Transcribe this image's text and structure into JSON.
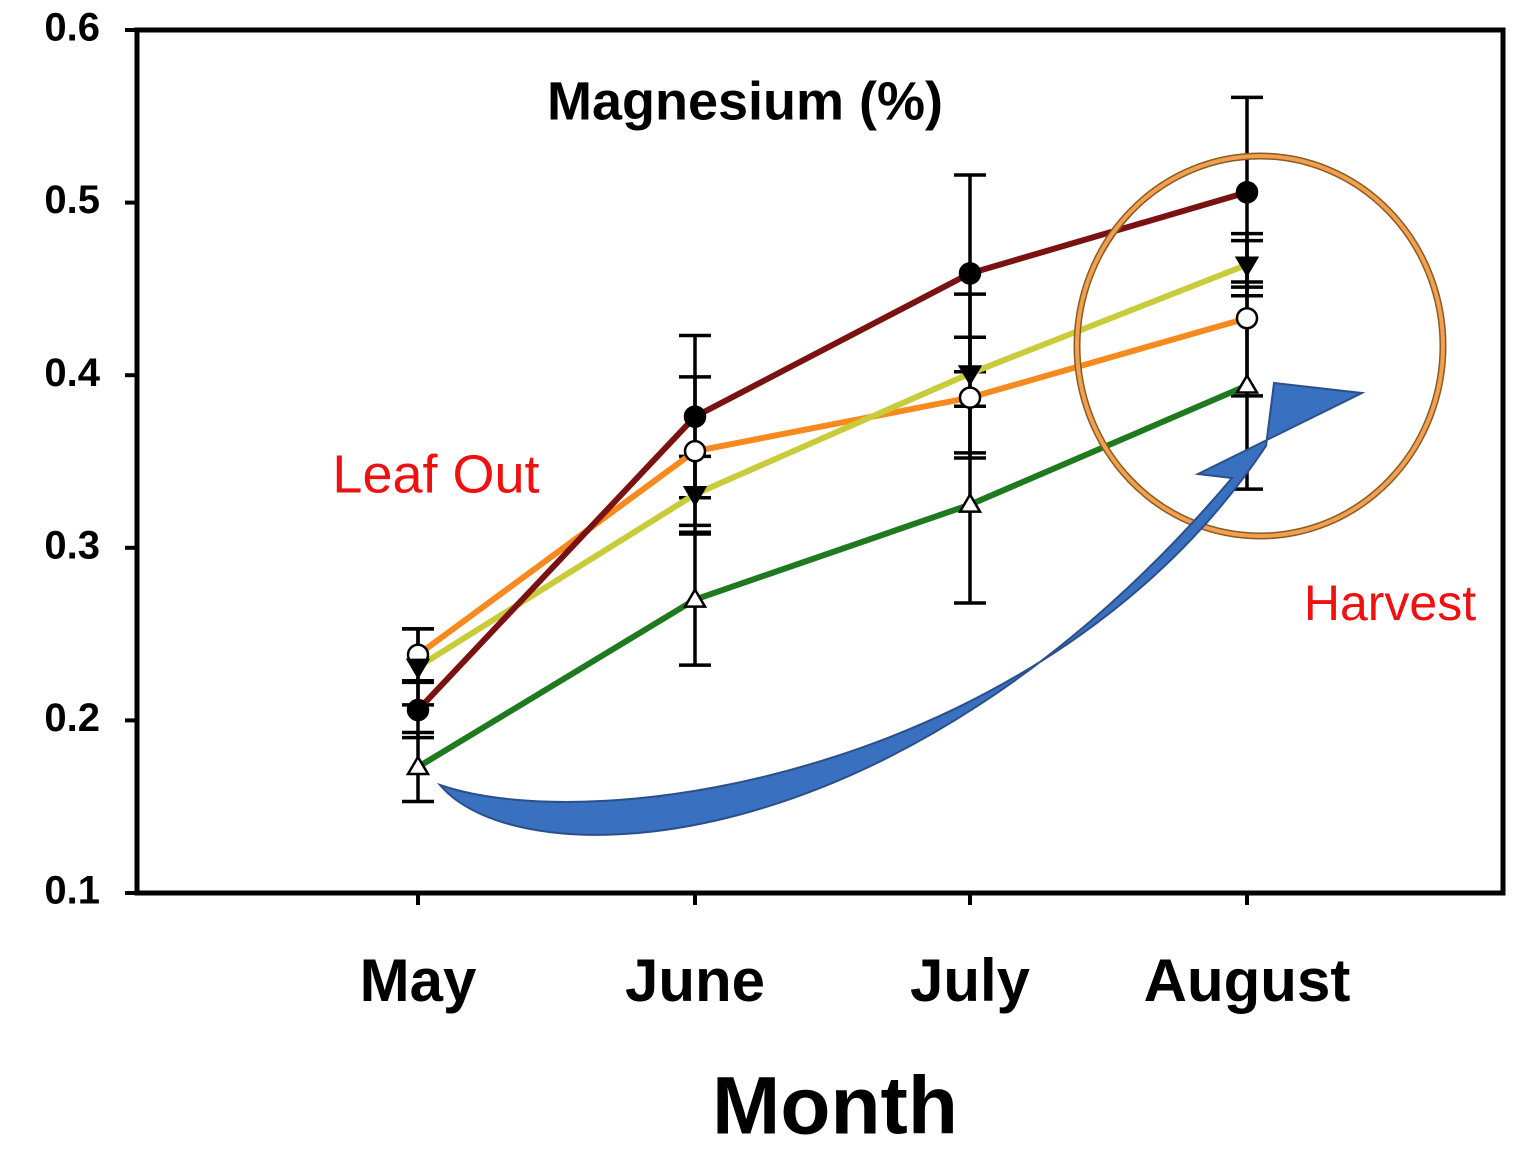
{
  "chart_data": {
    "type": "line",
    "title": "Magnesium (%)",
    "x_label": "Month",
    "annotations": [
      "Leaf Out",
      "Harvest"
    ],
    "categories": [
      "May",
      "June",
      "July",
      "August"
    ],
    "ylim": [
      0.1,
      0.6
    ],
    "yticks": [
      0.1,
      0.2,
      0.3,
      0.4,
      0.5,
      0.6
    ],
    "series": [
      {
        "color": "#1f7a1f",
        "marker": "triangle-open",
        "values": [
          0.173,
          0.27,
          0.325,
          0.394
        ],
        "errors": [
          0.02,
          0.038,
          0.057,
          0.06
        ]
      },
      {
        "color": "#f78a1e",
        "marker": "circle-open",
        "values": [
          0.238,
          0.356,
          0.387,
          0.433
        ],
        "errors": [
          0.015,
          0.043,
          0.035,
          0.045
        ]
      },
      {
        "color": "#c8cc3a",
        "marker": "triangle-down",
        "values": [
          0.231,
          0.331,
          0.401,
          0.464
        ],
        "errors": [
          0.022,
          0.022,
          0.046,
          0.018
        ]
      },
      {
        "color": "#7b1212",
        "marker": "circle",
        "values": [
          0.206,
          0.376,
          0.459,
          0.506
        ],
        "errors": [
          0.016,
          0.047,
          0.057,
          0.055
        ]
      }
    ]
  }
}
